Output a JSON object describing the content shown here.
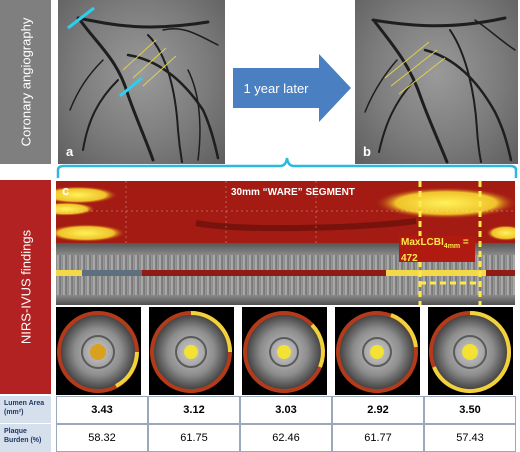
{
  "side_labels": {
    "angiography": "Coronary angiography",
    "nirs_ivus": "NIRS-IVUS findings"
  },
  "angiography": {
    "panel_a_letter": "a",
    "panel_b_letter": "b",
    "arrow_label": "1 year later"
  },
  "nirs": {
    "panel_letter": "c",
    "segment_title": "30mm “WARE” SEGMENT",
    "max_lcbi_prefix": "MaxLCBI",
    "max_lcbi_subscript": "4mm",
    "max_lcbi_equals": " =",
    "max_lcbi_value": "472"
  },
  "table": {
    "lumen_label": "Lumen Area (mm²)",
    "plaque_label": "Plaque Burden (%)",
    "lumen_values": [
      "3.43",
      "3.12",
      "3.03",
      "2.92",
      "3.50"
    ],
    "plaque_values": [
      "58.32",
      "61.75",
      "62.46",
      "61.77",
      "57.43"
    ]
  },
  "colors": {
    "arrow": "#4a7fc1",
    "brace": "#2ab7e0",
    "nirs_red": "#a31b12",
    "lipid_yellow": "#ffe84a",
    "side_red": "#b22222",
    "side_gray": "#7f7f7f",
    "table_label_bg": "#d6dfec"
  }
}
